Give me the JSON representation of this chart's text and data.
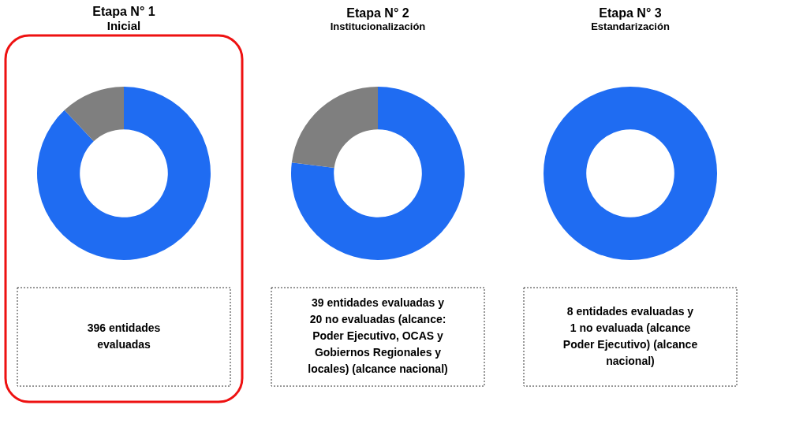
{
  "chart_data": [
    {
      "type": "donut",
      "title": "Etapa N° 1",
      "subtitle": "Inicial",
      "categories": [
        null,
        null
      ],
      "values": [
        88,
        12
      ],
      "colors": [
        "#1f6cf2",
        "#7f7f7f"
      ],
      "annotations": [
        "396 entidades\nevaluadas"
      ]
    },
    {
      "type": "donut",
      "title": "Etapa N° 2",
      "subtitle": "Institucionalización",
      "categories": [
        null,
        null
      ],
      "values": [
        77,
        23
      ],
      "colors": [
        "#1f6cf2",
        "#7f7f7f"
      ],
      "annotations": [
        "39 entidades evaluadas y\n20 no evaluadas (alcance:\nPoder Ejecutivo, OCAS y\nGobiernos Regionales y\nlocales) (alcance nacional)"
      ]
    },
    {
      "type": "donut",
      "title": "Etapa N° 3",
      "subtitle": "Estandarización",
      "categories": [
        null,
        null
      ],
      "values": [
        100,
        0
      ],
      "colors": [
        "#1f6cf2",
        "#7f7f7f"
      ],
      "annotations": [
        "8 entidades evaluadas y\n1 no evaluada (alcance\nPoder Ejecutivo) (alcance\nnacional)"
      ]
    }
  ]
}
